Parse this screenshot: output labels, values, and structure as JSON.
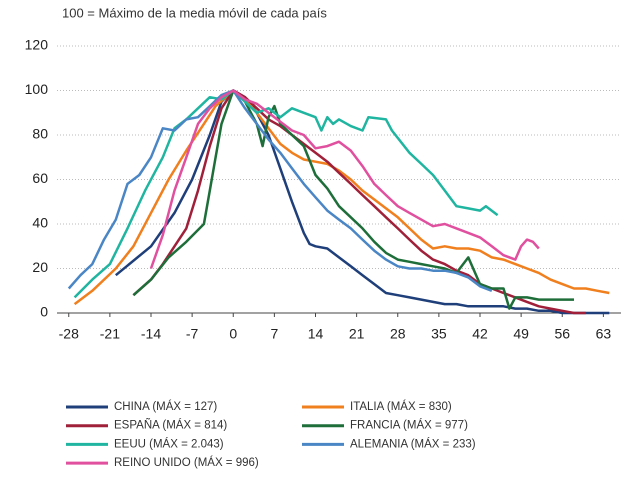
{
  "chart_data": {
    "type": "line",
    "subtitle": "100 = Máximo de la media móvil de cada país",
    "xlim": [
      -30,
      66
    ],
    "ylim": [
      0,
      120
    ],
    "xticks": [
      -28,
      -21,
      -14,
      -7,
      0,
      7,
      14,
      21,
      28,
      35,
      42,
      49,
      56,
      63
    ],
    "yticks": [
      0,
      20,
      40,
      60,
      80,
      100,
      120
    ],
    "grid": true,
    "series": [
      {
        "name": "CHINA (MÁX = 127)",
        "color": "#1f3f7a",
        "x": [
          -20,
          -14,
          -10,
          -7,
          -4,
          -2,
          0,
          2,
          4,
          6,
          8,
          10,
          12,
          13,
          14,
          16,
          18,
          20,
          22,
          24,
          26,
          28,
          30,
          32,
          34,
          36,
          38,
          40,
          42,
          44,
          46,
          48,
          50,
          52,
          54,
          56,
          58,
          60,
          62,
          64
        ],
        "values": [
          17,
          30,
          45,
          60,
          80,
          95,
          100,
          97,
          90,
          80,
          65,
          50,
          36,
          31,
          30,
          29,
          25,
          21,
          17,
          13,
          9,
          8,
          7,
          6,
          5,
          4,
          4,
          3,
          3,
          3,
          3,
          2,
          2,
          1,
          1,
          0,
          0,
          0,
          0,
          0
        ]
      },
      {
        "name": "ITALIA (MÁX = 830)",
        "color": "#f07f1e",
        "x": [
          -27,
          -24,
          -20,
          -17,
          -14,
          -11,
          -8,
          -5,
          -3,
          0,
          2,
          4,
          6,
          8,
          10,
          12,
          14,
          16,
          18,
          20,
          22,
          24,
          26,
          28,
          30,
          32,
          34,
          36,
          38,
          40,
          42,
          44,
          46,
          48,
          50,
          52,
          54,
          56,
          58,
          60,
          62,
          64
        ],
        "values": [
          4,
          10,
          20,
          30,
          45,
          60,
          73,
          85,
          93,
          100,
          96,
          90,
          83,
          76,
          72,
          69,
          68,
          67,
          64,
          60,
          55,
          51,
          47,
          43,
          38,
          33,
          29,
          30,
          29,
          29,
          28,
          25,
          24,
          22,
          20,
          18,
          15,
          13,
          11,
          11,
          10,
          9
        ]
      },
      {
        "name": "ESPAÑA (MÁX = 814)",
        "color": "#a0203a",
        "x": [
          -17,
          -14,
          -12,
          -10,
          -8,
          -6,
          -4,
          -2,
          0,
          2,
          4,
          6,
          8,
          10,
          12,
          14,
          16,
          18,
          20,
          22,
          24,
          26,
          28,
          30,
          32,
          34,
          36,
          38,
          40,
          42,
          44,
          46,
          48,
          50,
          52,
          54,
          56,
          58,
          60
        ],
        "values": [
          8,
          15,
          22,
          30,
          38,
          55,
          75,
          92,
          100,
          97,
          92,
          87,
          84,
          80,
          76,
          72,
          68,
          63,
          58,
          53,
          48,
          43,
          38,
          33,
          28,
          24,
          22,
          19,
          17,
          13,
          11,
          9,
          7,
          5,
          3,
          2,
          1,
          0,
          0
        ]
      },
      {
        "name": "FRANCIA (MÁX = 977)",
        "color": "#1e6e3a",
        "x": [
          -17,
          -14,
          -11,
          -8,
          -5,
          -4,
          -3,
          -2,
          0,
          2,
          4,
          5,
          6,
          7,
          8,
          10,
          12,
          14,
          16,
          18,
          20,
          22,
          24,
          26,
          28,
          30,
          32,
          34,
          36,
          38,
          40,
          42,
          44,
          46,
          47,
          48,
          50,
          52,
          54,
          56,
          58
        ],
        "values": [
          8,
          15,
          25,
          32,
          40,
          55,
          70,
          85,
          100,
          95,
          85,
          75,
          88,
          93,
          85,
          80,
          75,
          62,
          56,
          48,
          43,
          38,
          32,
          27,
          24,
          23,
          22,
          21,
          20,
          18,
          25,
          13,
          11,
          11,
          2,
          7,
          7,
          6,
          6,
          6,
          6
        ]
      },
      {
        "name": "EEUU (MÁX = 2.043)",
        "color": "#1fb5a0",
        "x": [
          -27,
          -24,
          -21,
          -18,
          -15,
          -12,
          -10,
          -8,
          -6,
          -4,
          -2,
          0,
          2,
          4,
          6,
          8,
          10,
          12,
          14,
          15,
          16,
          17,
          18,
          20,
          22,
          23,
          26,
          27,
          30,
          32,
          34,
          36,
          38,
          40,
          42,
          43,
          45
        ],
        "values": [
          7,
          15,
          22,
          38,
          55,
          70,
          83,
          87,
          92,
          97,
          96,
          100,
          95,
          90,
          92,
          88,
          92,
          90,
          88,
          82,
          88,
          85,
          87,
          84,
          82,
          88,
          87,
          82,
          72,
          67,
          62,
          55,
          48,
          47,
          46,
          48,
          44
        ]
      },
      {
        "name": "ALEMANIA (MÁX = 233)",
        "color": "#4a86c5",
        "x": [
          -28,
          -26,
          -24,
          -22,
          -20,
          -18,
          -16,
          -14,
          -12,
          -10,
          -8,
          -6,
          -4,
          -2,
          0,
          2,
          4,
          6,
          8,
          10,
          12,
          14,
          16,
          18,
          20,
          22,
          24,
          26,
          28,
          30,
          32,
          34,
          36,
          38,
          40,
          42,
          44
        ],
        "values": [
          11,
          17,
          22,
          33,
          42,
          58,
          62,
          70,
          83,
          82,
          87,
          88,
          93,
          98,
          100,
          92,
          85,
          78,
          72,
          65,
          58,
          52,
          46,
          42,
          38,
          33,
          28,
          24,
          21,
          20,
          20,
          19,
          19,
          18,
          16,
          12,
          10
        ]
      },
      {
        "name": "REINO UNIDO (MÁX = 996)",
        "color": "#e0509f",
        "x": [
          -14,
          -12,
          -10,
          -8,
          -6,
          -4,
          -2,
          0,
          2,
          4,
          6,
          8,
          10,
          12,
          14,
          16,
          18,
          20,
          22,
          24,
          26,
          28,
          30,
          32,
          34,
          36,
          38,
          40,
          42,
          44,
          46,
          48,
          49,
          50,
          51,
          52
        ],
        "values": [
          20,
          35,
          55,
          70,
          85,
          92,
          97,
          100,
          96,
          94,
          90,
          86,
          82,
          80,
          74,
          75,
          77,
          73,
          66,
          58,
          53,
          48,
          45,
          42,
          39,
          40,
          38,
          36,
          34,
          30,
          26,
          24,
          30,
          33,
          32,
          29
        ]
      }
    ]
  }
}
